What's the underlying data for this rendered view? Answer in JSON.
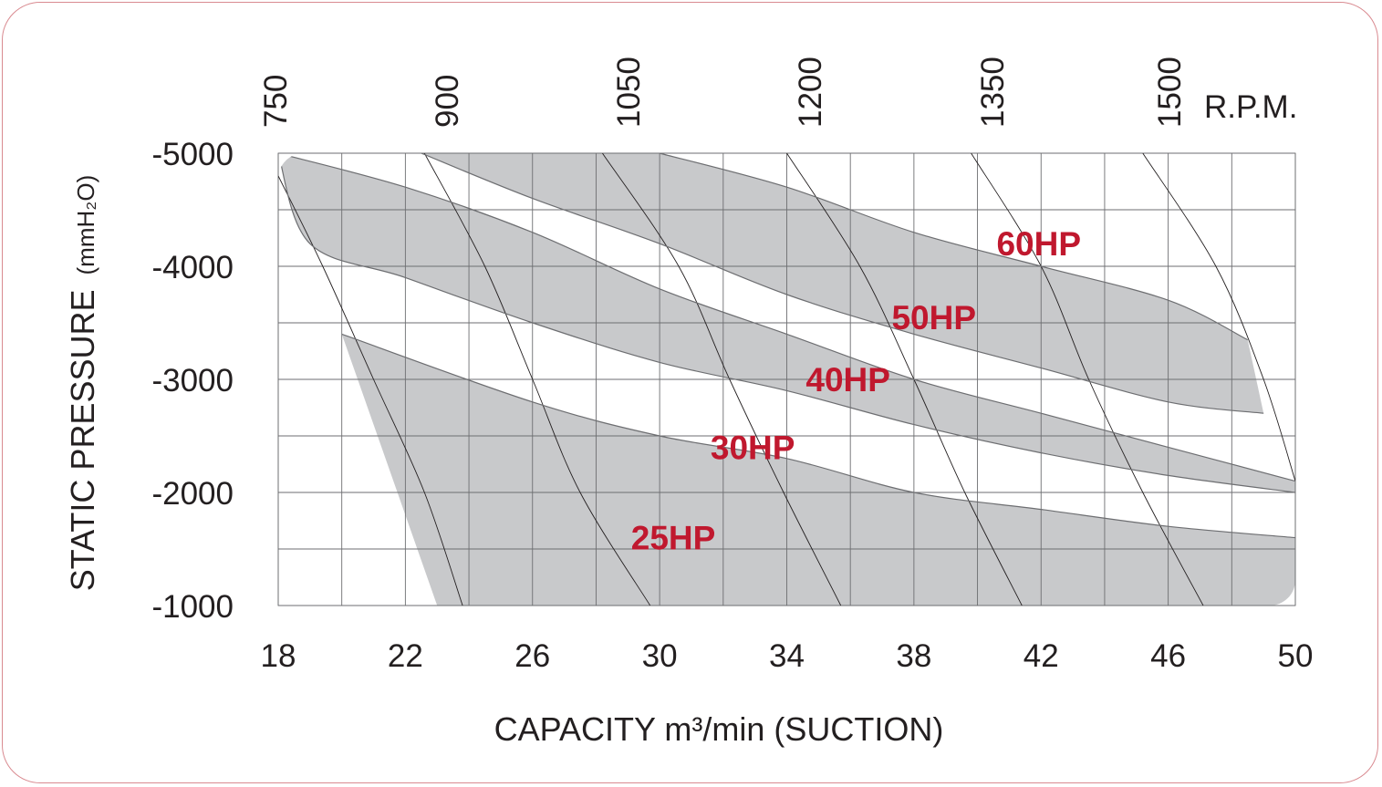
{
  "chart_data": {
    "type": "area",
    "xlabel": "CAPACITY m³/min (SUCTION)",
    "ylabel_main": "STATIC PRESSURE",
    "ylabel_unit": "(mmH₂O)",
    "xlim": [
      18,
      50
    ],
    "ylim": [
      -1000,
      -5000
    ],
    "x_ticks": [
      18,
      22,
      26,
      30,
      34,
      38,
      42,
      46,
      50
    ],
    "x_tick_labels": [
      "18",
      "22",
      "26",
      "30",
      "34",
      "38",
      "42",
      "46",
      "50"
    ],
    "y_ticks": [
      -5000,
      -4000,
      -3000,
      -2000,
      -1000
    ],
    "y_tick_labels": [
      "-5000",
      "-4000",
      "-3000",
      "-2000",
      "-1000"
    ],
    "grid": true,
    "rpm_label": "R.P.M.",
    "rpm_curves": [
      {
        "label": "750",
        "points": [
          [
            18.0,
            -4800
          ],
          [
            19.4,
            -4000
          ],
          [
            21.0,
            -3000
          ],
          [
            22.6,
            -2000
          ],
          [
            23.8,
            -1000
          ]
        ]
      },
      {
        "label": "900",
        "points": [
          [
            22.6,
            -5000
          ],
          [
            24.5,
            -4000
          ],
          [
            26.0,
            -3000
          ],
          [
            27.5,
            -2000
          ],
          [
            29.7,
            -1000
          ]
        ]
      },
      {
        "label": "1050",
        "points": [
          [
            28.2,
            -5000
          ],
          [
            30.6,
            -4000
          ],
          [
            32.2,
            -3000
          ],
          [
            33.9,
            -2000
          ],
          [
            35.7,
            -1000
          ]
        ]
      },
      {
        "label": "1200",
        "points": [
          [
            34.0,
            -5000
          ],
          [
            36.3,
            -4000
          ],
          [
            38.0,
            -3000
          ],
          [
            39.6,
            -2000
          ],
          [
            41.4,
            -1000
          ]
        ]
      },
      {
        "label": "1350",
        "points": [
          [
            39.8,
            -5000
          ],
          [
            42.0,
            -4000
          ],
          [
            43.5,
            -3000
          ],
          [
            45.2,
            -2000
          ],
          [
            47.1,
            -1000
          ]
        ]
      },
      {
        "label": "1500",
        "points": [
          [
            45.2,
            -5000
          ],
          [
            47.5,
            -4000
          ],
          [
            49.0,
            -3000
          ],
          [
            50.0,
            -2100
          ]
        ]
      }
    ],
    "series": [
      {
        "name": "25HP",
        "points": [
          [
            20.0,
            -3400
          ],
          [
            26.0,
            -2800
          ],
          [
            30.0,
            -2500
          ],
          [
            34.0,
            -2300
          ],
          [
            38.0,
            -2000
          ],
          [
            42.0,
            -1850
          ],
          [
            46.0,
            -1700
          ],
          [
            50.0,
            -1600
          ]
        ]
      },
      {
        "name": "30HP",
        "points": [
          [
            18.0,
            -5000
          ],
          [
            22.0,
            -4700
          ],
          [
            26.0,
            -4300
          ],
          [
            30.0,
            -3800
          ],
          [
            34.0,
            -3400
          ],
          [
            38.0,
            -3000
          ],
          [
            42.0,
            -2700
          ],
          [
            46.0,
            -2400
          ],
          [
            50.0,
            -2100
          ]
        ]
      },
      {
        "name": "40HP",
        "points": [
          [
            18.0,
            -5000
          ],
          [
            19.0,
            -4200
          ],
          [
            22.0,
            -3900
          ],
          [
            26.0,
            -3500
          ],
          [
            30.0,
            -3150
          ],
          [
            34.0,
            -2900
          ],
          [
            38.0,
            -2600
          ],
          [
            42.0,
            -2350
          ],
          [
            46.0,
            -2150
          ],
          [
            50.0,
            -2000
          ]
        ]
      },
      {
        "name": "50HP",
        "points": [
          [
            22.5,
            -5000
          ],
          [
            26.0,
            -4600
          ],
          [
            30.0,
            -4200
          ],
          [
            34.0,
            -3750
          ],
          [
            38.0,
            -3400
          ],
          [
            42.0,
            -3100
          ],
          [
            46.0,
            -2800
          ],
          [
            49.0,
            -2700
          ]
        ]
      },
      {
        "name": "60HP",
        "points": [
          [
            30.0,
            -5000
          ],
          [
            34.0,
            -4700
          ],
          [
            38.0,
            -4300
          ],
          [
            42.0,
            -4000
          ],
          [
            46.0,
            -3700
          ],
          [
            48.5,
            -3350
          ]
        ]
      }
    ],
    "series_labels": [
      {
        "text": "25HP",
        "x": 29.1,
        "y": -1600
      },
      {
        "text": "30HP",
        "x": 31.6,
        "y": -2400
      },
      {
        "text": "40HP",
        "x": 34.6,
        "y": -3000
      },
      {
        "text": "50HP",
        "x": 37.3,
        "y": -3550
      },
      {
        "text": "60HP",
        "x": 40.6,
        "y": -4200
      }
    ],
    "colors": {
      "band": "#c8c9cb",
      "curve": "#6d6e71",
      "grid": "#6d6e71",
      "hp_label": "#c0182e",
      "text": "#231f20",
      "frame": "#d98a90"
    }
  }
}
